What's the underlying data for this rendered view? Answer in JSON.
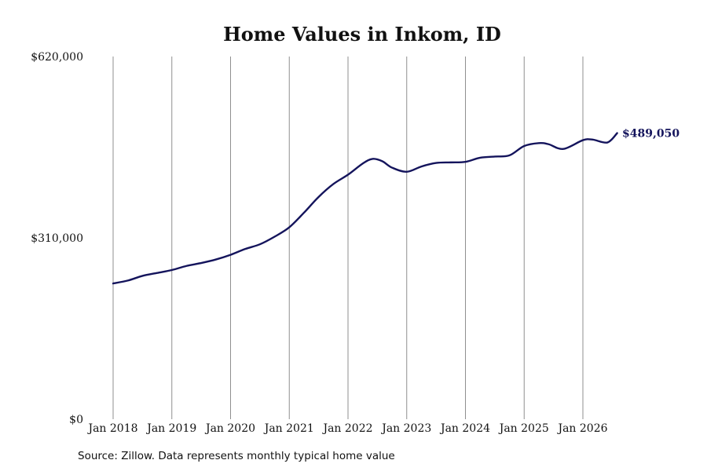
{
  "chart_data": {
    "type": "line",
    "title": "Home Values in Inkom, ID",
    "xlabel": "",
    "ylabel": "",
    "ylim": [
      0,
      620000
    ],
    "y_ticks": [
      "$0",
      "$310,000",
      "$620,000"
    ],
    "y_tick_values": [
      0,
      310000,
      620000
    ],
    "x_ticks": [
      "Jan 2018",
      "Jan 2019",
      "Jan 2020",
      "Jan 2021",
      "Jan 2022",
      "Jan 2023",
      "Jan 2024",
      "Jan 2025",
      "Jan 2026"
    ],
    "x_tick_values": [
      "2018-01",
      "2019-01",
      "2020-01",
      "2021-01",
      "2022-01",
      "2023-01",
      "2024-01",
      "2025-01",
      "2026-01"
    ],
    "xlim": [
      "2018-01",
      "2026-09"
    ],
    "grid": "vertical",
    "line_color": "#14145c",
    "end_label": "$489,050",
    "series": [
      {
        "name": "",
        "x": [
          "2018-01",
          "2018-04",
          "2018-07",
          "2018-10",
          "2019-01",
          "2019-04",
          "2019-07",
          "2019-10",
          "2020-01",
          "2020-04",
          "2020-07",
          "2020-10",
          "2021-01",
          "2021-04",
          "2021-07",
          "2021-10",
          "2022-01",
          "2022-04",
          "2022-06",
          "2022-08",
          "2022-10",
          "2023-01",
          "2023-04",
          "2023-07",
          "2023-10",
          "2024-01",
          "2024-04",
          "2024-07",
          "2024-10",
          "2025-01",
          "2025-04",
          "2025-06",
          "2025-09",
          "2026-01",
          "2026-03",
          "2026-06",
          "2026-08"
        ],
        "values": [
          232000,
          237000,
          245000,
          250000,
          255000,
          262000,
          267000,
          273000,
          281000,
          291000,
          299000,
          312000,
          328000,
          353000,
          380000,
          402000,
          418000,
          437000,
          445000,
          441000,
          430000,
          423000,
          432000,
          438000,
          439000,
          440000,
          447000,
          449000,
          451000,
          467000,
          472000,
          470000,
          462000,
          477000,
          478000,
          473000,
          489050
        ]
      }
    ]
  },
  "footer": {
    "source": "Source: Zillow. Data represents monthly typical home value"
  }
}
